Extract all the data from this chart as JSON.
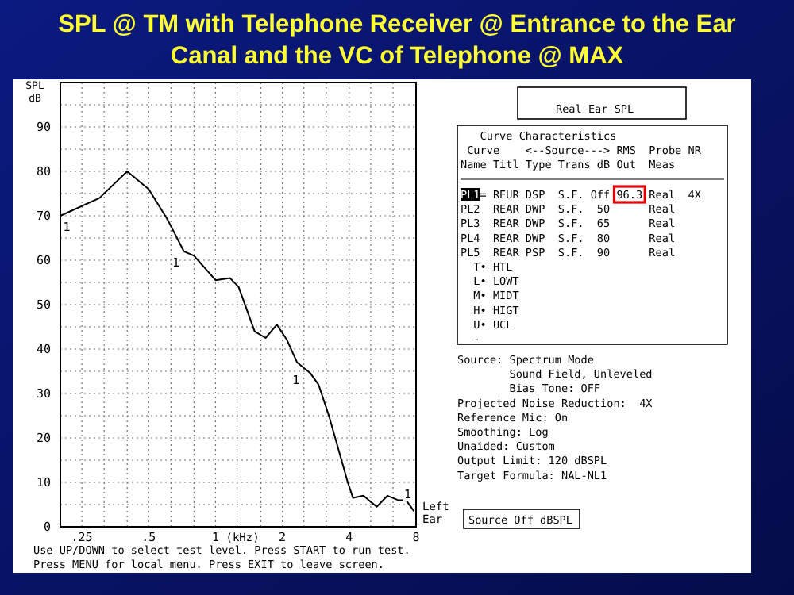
{
  "chart_data": {
    "type": "line",
    "title": "SPL @ TM with Telephone Receiver @ Entrance to the Ear Canal and the VC of Telephone @ MAX",
    "xlabel": "(kHz)",
    "ylabel": "SPL dB",
    "log": "x",
    "grid": true,
    "marker": "none",
    "line_style": "solid",
    "xlim": [
      0.2,
      8
    ],
    "ylim": [
      0,
      100
    ],
    "xticks": [
      {
        "value": 0.2,
        "label": null
      },
      {
        "value": 0.25,
        "label": ".25"
      },
      {
        "value": 0.315,
        "label": null
      },
      {
        "value": 0.4,
        "label": null
      },
      {
        "value": 0.5,
        "label": ".5"
      },
      {
        "value": 0.63,
        "label": null
      },
      {
        "value": 0.8,
        "label": null
      },
      1,
      {
        "value": 1.25,
        "label": null
      },
      {
        "value": 1.6,
        "label": null
      },
      2,
      {
        "value": 2.5,
        "label": null
      },
      {
        "value": 3.15,
        "label": null
      },
      4,
      {
        "value": 5,
        "label": null
      },
      {
        "value": 6.3,
        "label": null
      },
      8
    ],
    "yticks": [
      0,
      {
        "value": 5,
        "label": null
      },
      10,
      {
        "value": 15,
        "label": null
      },
      20,
      {
        "value": 25,
        "label": null
      },
      30,
      {
        "value": 35,
        "label": null
      },
      40,
      {
        "value": 45,
        "label": null
      },
      50,
      {
        "value": 55,
        "label": null
      },
      60,
      {
        "value": 65,
        "label": null
      },
      70,
      {
        "value": 75,
        "label": null
      },
      80,
      {
        "value": 85,
        "label": null
      },
      90,
      {
        "value": 95,
        "label": null
      }
    ],
    "series": [
      {
        "color": "#000000",
        "x": [
          0.2,
          0.3,
          0.4,
          0.5,
          0.61,
          0.72,
          0.8,
          1.0,
          1.16,
          1.27,
          1.5,
          1.68,
          1.89,
          2.1,
          2.33,
          2.68,
          2.91,
          3.24,
          3.62,
          3.94,
          4.16,
          4.64,
          4.9,
          5.32,
          5.95,
          6.64,
          7.21,
          7.83
        ],
        "values": [
          70,
          74,
          80,
          76,
          69,
          62,
          61,
          55.5,
          56,
          54,
          44,
          42.5,
          45.5,
          42,
          37,
          34.5,
          32,
          25,
          16.5,
          10,
          6.5,
          7,
          6,
          4.5,
          7,
          6,
          6,
          3.5
        ]
      }
    ],
    "annotations": [
      "Real Ear SPL",
      "   Curve Characteristics",
      " Curve    <--Source---> RMS  Probe NR",
      "Name Titl Type Trans dB Out  Meas",
      "PL1= REUR DSP  S.F. Off 96.3 Real  4X",
      "PL2  REAR DWP  S.F.  50      Real",
      "PL3  REAR DWP  S.F.  65      Real",
      "PL4  REAR DWP  S.F.  80      Real",
      "PL5  REAR PSP  S.F.  90      Real",
      "  T• HTL",
      "  L• LOWT",
      "  M• MIDT",
      "  H• HIGT",
      "  U• UCL",
      "  -",
      "Source: Spectrum Mode",
      "        Sound Field, Unleveled",
      "        Bias Tone: OFF",
      "Projected Noise Reduction:  4X",
      "Reference Mic: On",
      "Smoothing: Log",
      "Unaided: Custom",
      "Output Limit: 120 dBSPL",
      "Target Formula: NAL-NL1",
      "Source Off dBSPL",
      "Use UP/DOWN to select test level. Press START to run test.",
      "Press MENU for local menu. Press EXIT to leave screen.",
      {
        "text": "1",
        "x": 0.2,
        "y": 70
      },
      {
        "text": "1",
        "x": 0.72,
        "y": 62
      },
      {
        "text": "1",
        "x": 2.5,
        "y": 35.5
      },
      {
        "text": "1",
        "x": 7.83,
        "y": 5.5
      },
      {
        "text": "Left Ear",
        "x": 8,
        "y": 3
      }
    ]
  }
}
